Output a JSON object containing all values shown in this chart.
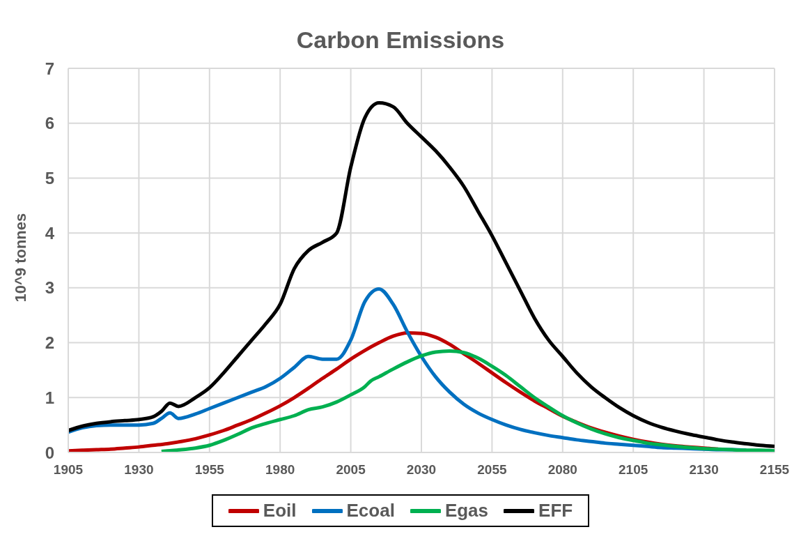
{
  "chart_data": {
    "type": "line",
    "title": "Carbon Emissions",
    "ylabel": "10^9 tonnes",
    "xlim": [
      1905,
      2155
    ],
    "xticks": [
      1905,
      1930,
      1955,
      1980,
      2005,
      2030,
      2055,
      2080,
      2105,
      2130,
      2155
    ],
    "ylim": [
      0,
      7
    ],
    "yticks": [
      0,
      1,
      2,
      3,
      4,
      5,
      6,
      7
    ],
    "grid": true,
    "legend": "bottom",
    "marker": "none",
    "line_style": "solid",
    "series": [
      {
        "name": "Eoil",
        "color": "#c00000",
        "x": [
          1905,
          1910,
          1915,
          1920,
          1925,
          1930,
          1935,
          1940,
          1945,
          1950,
          1955,
          1960,
          1965,
          1970,
          1975,
          1980,
          1985,
          1990,
          1995,
          2000,
          2005,
          2010,
          2015,
          2020,
          2025,
          2030,
          2035,
          2040,
          2045,
          2050,
          2055,
          2060,
          2065,
          2070,
          2075,
          2080,
          2085,
          2090,
          2095,
          2100,
          2105,
          2110,
          2115,
          2120,
          2125,
          2130,
          2135
        ],
        "values": [
          0.03,
          0.04,
          0.05,
          0.06,
          0.08,
          0.1,
          0.13,
          0.16,
          0.2,
          0.25,
          0.32,
          0.4,
          0.5,
          0.6,
          0.72,
          0.85,
          1.0,
          1.17,
          1.35,
          1.52,
          1.7,
          1.86,
          2.0,
          2.12,
          2.18,
          2.17,
          2.1,
          1.97,
          1.8,
          1.63,
          1.45,
          1.27,
          1.1,
          0.94,
          0.8,
          0.66,
          0.55,
          0.45,
          0.37,
          0.3,
          0.24,
          0.19,
          0.15,
          0.12,
          0.1,
          0.08,
          0.06
        ]
      },
      {
        "name": "Ecoal",
        "color": "#0070c0",
        "x": [
          1905,
          1910,
          1915,
          1920,
          1925,
          1930,
          1935,
          1938,
          1941,
          1944,
          1950,
          1955,
          1960,
          1965,
          1970,
          1975,
          1980,
          1985,
          1990,
          1995,
          2000,
          2005,
          2010,
          2015,
          2020,
          2025,
          2030,
          2035,
          2040,
          2045,
          2050,
          2055,
          2060,
          2065,
          2070,
          2075,
          2080,
          2085,
          2090,
          2095,
          2100,
          2105,
          2110,
          2115,
          2120,
          2125,
          2130,
          2135,
          2140,
          2145
        ],
        "values": [
          0.37,
          0.45,
          0.49,
          0.5,
          0.5,
          0.5,
          0.53,
          0.62,
          0.72,
          0.62,
          0.7,
          0.8,
          0.9,
          1.0,
          1.1,
          1.2,
          1.35,
          1.55,
          1.75,
          1.7,
          1.7,
          2.05,
          2.75,
          2.98,
          2.7,
          2.2,
          1.75,
          1.38,
          1.1,
          0.88,
          0.72,
          0.6,
          0.5,
          0.42,
          0.36,
          0.31,
          0.27,
          0.23,
          0.2,
          0.17,
          0.15,
          0.13,
          0.11,
          0.09,
          0.08,
          0.07,
          0.06,
          0.05,
          0.05,
          0.04
        ]
      },
      {
        "name": "Egas",
        "color": "#00b050",
        "x": [
          1938,
          1940,
          1945,
          1950,
          1955,
          1960,
          1965,
          1970,
          1975,
          1980,
          1985,
          1990,
          1995,
          2000,
          2005,
          2010,
          2012,
          2015,
          2020,
          2025,
          2030,
          2035,
          2040,
          2045,
          2050,
          2055,
          2060,
          2065,
          2070,
          2075,
          2080,
          2085,
          2090,
          2095,
          2100,
          2105,
          2110,
          2115,
          2120,
          2125,
          2130,
          2135,
          2140,
          2145,
          2150,
          2155
        ],
        "values": [
          0.02,
          0.03,
          0.05,
          0.08,
          0.13,
          0.22,
          0.33,
          0.45,
          0.53,
          0.6,
          0.67,
          0.78,
          0.83,
          0.92,
          1.05,
          1.2,
          1.3,
          1.38,
          1.52,
          1.65,
          1.76,
          1.83,
          1.85,
          1.82,
          1.72,
          1.57,
          1.4,
          1.2,
          1.0,
          0.83,
          0.67,
          0.54,
          0.43,
          0.34,
          0.27,
          0.22,
          0.17,
          0.14,
          0.11,
          0.09,
          0.07,
          0.06,
          0.05,
          0.04,
          0.04,
          0.03
        ]
      },
      {
        "name": "EFF",
        "color": "#000000",
        "x": [
          1905,
          1910,
          1915,
          1920,
          1925,
          1930,
          1935,
          1938,
          1941,
          1944,
          1950,
          1955,
          1960,
          1965,
          1970,
          1975,
          1980,
          1985,
          1990,
          1995,
          2000,
          2005,
          2010,
          2015,
          2020,
          2025,
          2030,
          2035,
          2040,
          2045,
          2050,
          2055,
          2060,
          2065,
          2070,
          2075,
          2080,
          2085,
          2090,
          2095,
          2100,
          2105,
          2110,
          2115,
          2120,
          2125,
          2130,
          2135,
          2140,
          2145,
          2150,
          2155
        ],
        "values": [
          0.4,
          0.48,
          0.53,
          0.56,
          0.58,
          0.6,
          0.65,
          0.75,
          0.9,
          0.84,
          1.0,
          1.18,
          1.45,
          1.75,
          2.05,
          2.35,
          2.7,
          3.35,
          3.68,
          3.83,
          4.0,
          5.2,
          6.1,
          6.37,
          6.3,
          6.0,
          5.75,
          5.5,
          5.2,
          4.85,
          4.4,
          3.95,
          3.45,
          2.95,
          2.45,
          2.05,
          1.75,
          1.45,
          1.2,
          1.0,
          0.82,
          0.67,
          0.55,
          0.46,
          0.39,
          0.33,
          0.28,
          0.23,
          0.19,
          0.16,
          0.13,
          0.11
        ]
      }
    ]
  }
}
